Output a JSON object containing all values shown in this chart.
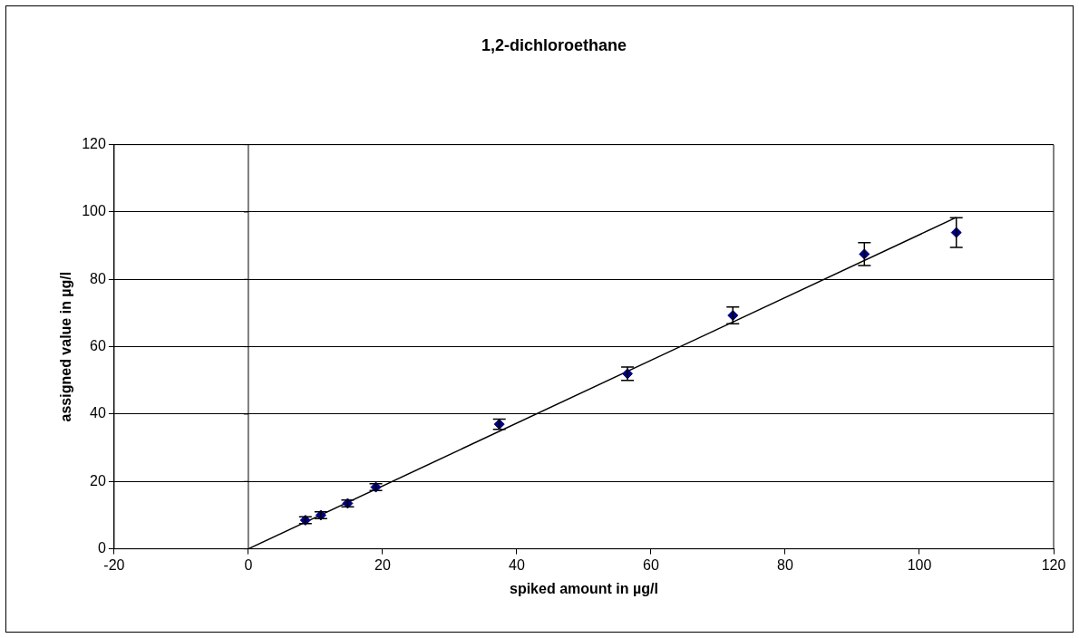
{
  "chart_data": {
    "type": "scatter",
    "title": "1,2-dichloroethane",
    "xlabel": "spiked amount in µg/l",
    "ylabel": "assigned value in µg/l",
    "xlim": [
      -20,
      120
    ],
    "xticks": [
      -20,
      0,
      20,
      40,
      60,
      80,
      100,
      120
    ],
    "ylim": [
      0,
      120
    ],
    "yticks": [
      0,
      20,
      40,
      60,
      80,
      100,
      120
    ],
    "grid": "y",
    "legend": false,
    "series": [
      {
        "type": "scatter",
        "marker": "diamond",
        "color": "#000080",
        "x": [
          8.5,
          10.8,
          14.8,
          19,
          37.4,
          56.5,
          72.2,
          91.8,
          105.5
        ],
        "values": [
          8.5,
          10,
          13.5,
          18.3,
          37,
          52,
          69.3,
          87.5,
          93.9
        ],
        "errors": [
          1,
          1,
          1,
          1,
          1.5,
          2,
          2.5,
          3.4,
          4.4
        ]
      },
      {
        "type": "line",
        "marker": "none",
        "color": "#000000",
        "x": [
          0,
          105.5
        ],
        "values": [
          0,
          98.4
        ]
      }
    ],
    "ref_lines": [
      {
        "axis": "x",
        "value": 0,
        "color": "#000000"
      }
    ]
  }
}
